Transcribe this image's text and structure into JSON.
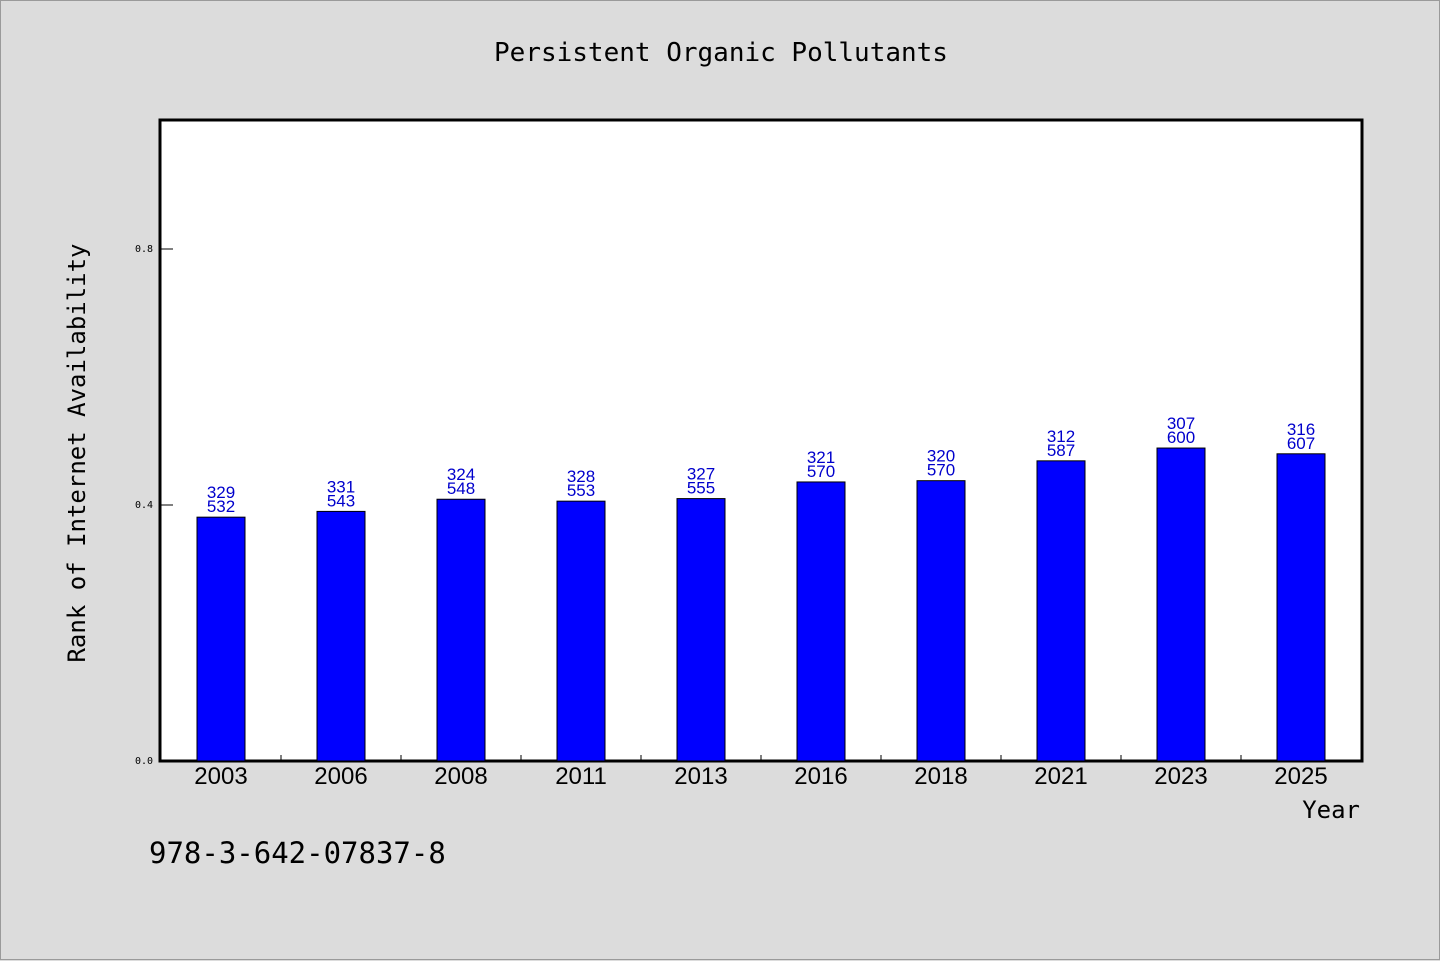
{
  "chart_data": {
    "type": "bar",
    "title": "Persistent Organic Pollutants",
    "xlabel": "Year",
    "ylabel": "Rank of Internet Availability",
    "categories": [
      "2003",
      "2006",
      "2008",
      "2011",
      "2013",
      "2016",
      "2018",
      "2021",
      "2023",
      "2025"
    ],
    "values": [
      0.381,
      0.39,
      0.409,
      0.406,
      0.41,
      0.436,
      0.438,
      0.469,
      0.489,
      0.48
    ],
    "labels_top": [
      "329",
      "331",
      "324",
      "328",
      "327",
      "321",
      "320",
      "312",
      "307",
      "316"
    ],
    "labels_bottom": [
      "532",
      "543",
      "548",
      "553",
      "555",
      "570",
      "570",
      "587",
      "600",
      "607"
    ],
    "yticks": [
      "0.0",
      "0.4",
      "0.8"
    ],
    "ylim": [
      0,
      1.0
    ],
    "grid": false,
    "bar_color": "#0000ff",
    "label_color": "#0000cc"
  },
  "footnote": "978-3-642-07837-8"
}
